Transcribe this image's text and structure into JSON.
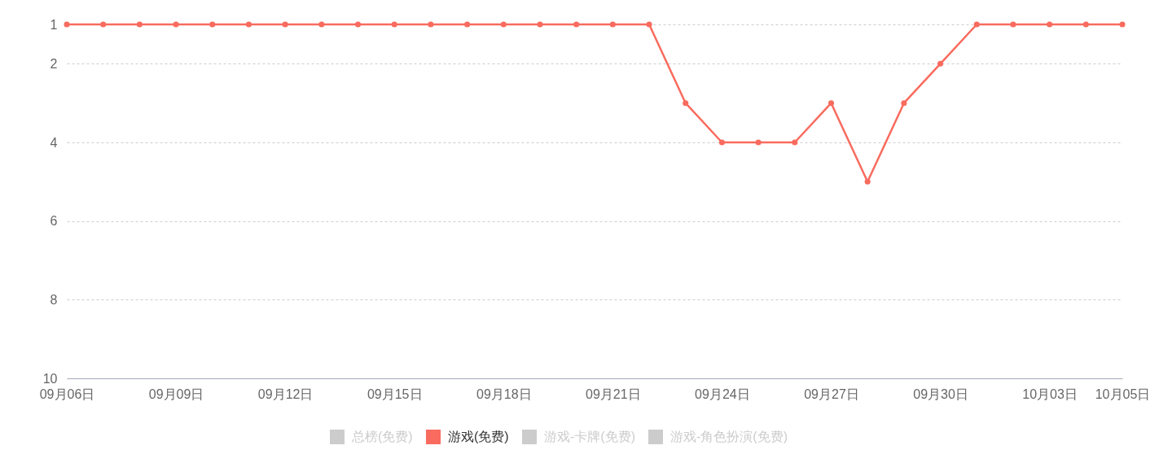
{
  "chart_data": {
    "type": "line",
    "categories": [
      "09月06日",
      null,
      null,
      "09月09日",
      null,
      null,
      "09月12日",
      null,
      null,
      "09月15日",
      null,
      null,
      "09月18日",
      null,
      null,
      "09月21日",
      null,
      null,
      "09月24日",
      null,
      null,
      "09月27日",
      null,
      null,
      "09月30日",
      null,
      null,
      "10月03日",
      null,
      "10月05日"
    ],
    "series": [
      {
        "name": "总榜(免费)",
        "color": "#cccccc",
        "values": [
          null,
          null,
          null,
          null,
          null,
          null,
          null,
          null,
          null,
          null,
          null,
          null,
          null,
          null,
          null,
          null,
          null,
          null,
          null,
          null,
          null,
          null,
          null,
          null,
          null,
          null,
          null,
          null,
          null,
          null
        ]
      },
      {
        "name": "游戏(免费)",
        "color": "#f96b5e",
        "values": [
          1,
          1,
          1,
          1,
          1,
          1,
          1,
          1,
          1,
          1,
          1,
          1,
          1,
          1,
          1,
          1,
          1,
          3,
          4,
          4,
          4,
          3,
          5,
          3,
          2,
          1,
          1,
          1,
          1,
          1
        ]
      },
      {
        "name": "游戏-卡牌(免费)",
        "color": "#cccccc",
        "values": [
          null,
          null,
          null,
          null,
          null,
          null,
          null,
          null,
          null,
          null,
          null,
          null,
          null,
          null,
          null,
          null,
          null,
          null,
          null,
          null,
          null,
          null,
          null,
          null,
          null,
          null,
          null,
          null,
          null,
          null
        ]
      },
      {
        "name": "游戏-角色扮演(免费)",
        "color": "#cccccc",
        "values": [
          null,
          null,
          null,
          null,
          null,
          null,
          null,
          null,
          null,
          null,
          null,
          null,
          null,
          null,
          null,
          null,
          null,
          null,
          null,
          null,
          null,
          null,
          null,
          null,
          null,
          null,
          null,
          null,
          null,
          null
        ]
      }
    ],
    "ylim": [
      10,
      1
    ],
    "yticks": [
      1,
      2,
      4,
      6,
      8,
      10
    ],
    "grid": "y",
    "legend": "bottom",
    "marker": "circle",
    "line_style": "solid"
  }
}
